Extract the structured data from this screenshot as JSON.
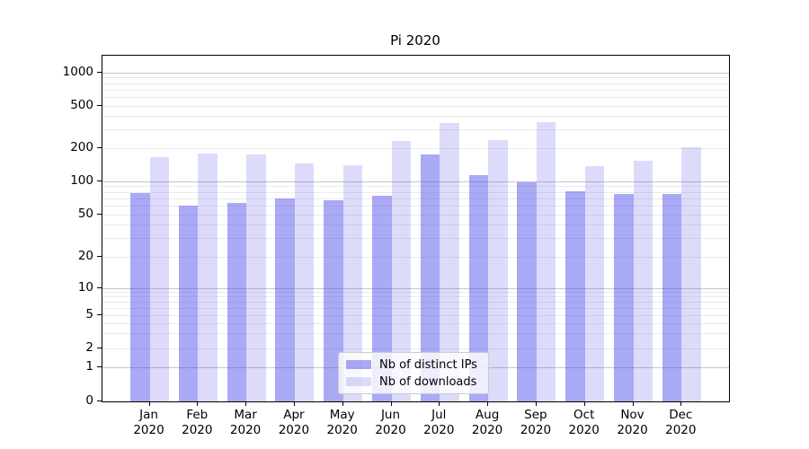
{
  "chart_data": {
    "type": "bar",
    "title": "Pi 2020",
    "categories": [
      "Jan",
      "Feb",
      "Mar",
      "Apr",
      "May",
      "Jun",
      "Jul",
      "Aug",
      "Sep",
      "Oct",
      "Nov",
      "Dec"
    ],
    "category_year": "2020",
    "series": [
      {
        "name": "Nb of distinct IPs",
        "color": "rgba(64,64,232,0.45)",
        "values": [
          78,
          60,
          63,
          69,
          67,
          74,
          176,
          113,
          98,
          81,
          76,
          76
        ]
      },
      {
        "name": "Nb of downloads",
        "color": "rgba(80,80,230,0.2)",
        "values": [
          166,
          178,
          174,
          146,
          140,
          235,
          342,
          238,
          352,
          137,
          153,
          202
        ]
      }
    ],
    "yscale": "symlog",
    "yticks": [
      0,
      1,
      2,
      5,
      10,
      20,
      50,
      100,
      200,
      500,
      1000
    ],
    "ylim": [
      0,
      1200
    ],
    "grid": true,
    "grid_major_color": "#c6c6c6",
    "grid_minor_color": "#ebebeb",
    "legend_position": "lower center",
    "background_color": "#ffffff",
    "text_color": "#000000"
  }
}
